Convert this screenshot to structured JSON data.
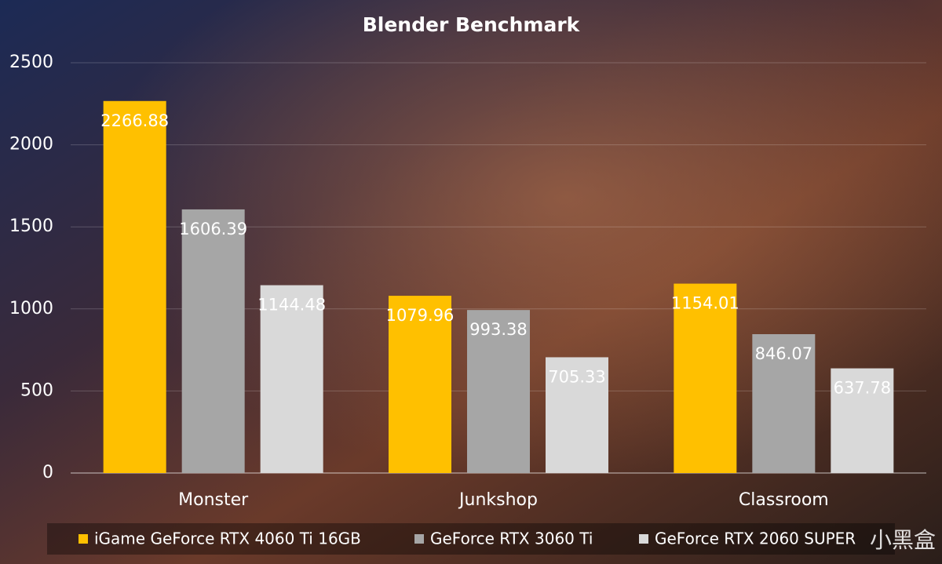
{
  "chart_data": {
    "type": "bar",
    "title": "Blender Benchmark",
    "categories": [
      "Monster",
      "Junkshop",
      "Classroom"
    ],
    "series": [
      {
        "name": "iGame GeForce RTX 4060 Ti 16GB",
        "color": "#FFC000",
        "values": [
          2266.88,
          1079.96,
          1154.01
        ]
      },
      {
        "name": "GeForce RTX 3060 Ti",
        "color": "#A6A6A6",
        "values": [
          1606.39,
          993.38,
          846.07
        ]
      },
      {
        "name": "GeForce RTX 2060 SUPER",
        "color": "#D9D9D9",
        "values": [
          1144.48,
          705.33,
          637.78
        ]
      }
    ],
    "ylim": [
      0,
      2500
    ],
    "yticks": [
      0,
      500,
      1000,
      1500,
      2000,
      2500
    ],
    "grid": true,
    "legend": "bottom",
    "watermark": "小黑盒"
  }
}
